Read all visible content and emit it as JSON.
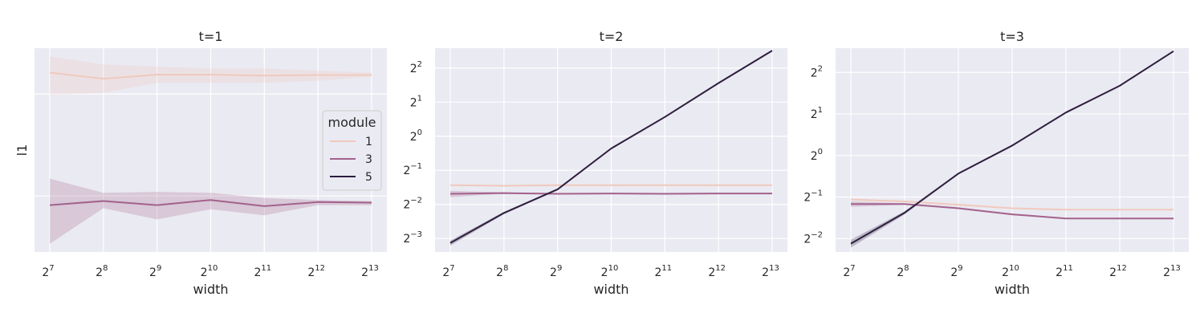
{
  "chart_data": [
    {
      "type": "line",
      "title": "t=1",
      "xlabel": "width",
      "ylabel": "l1",
      "x_scale": "log2",
      "y_scale": "linear",
      "x": [
        128,
        256,
        512,
        1024,
        2048,
        4096,
        8192
      ],
      "x_ticks": [
        {
          "base": "2",
          "exp": "7"
        },
        {
          "base": "2",
          "exp": "8"
        },
        {
          "base": "2",
          "exp": "9"
        },
        {
          "base": "2",
          "exp": "10"
        },
        {
          "base": "2",
          "exp": "11"
        },
        {
          "base": "2",
          "exp": "12"
        },
        {
          "base": "2",
          "exp": "13"
        }
      ],
      "y_ticks": [],
      "ylim": [
        0,
        100
      ],
      "grid": true,
      "legend": {
        "title": "module",
        "placement": "center-right"
      },
      "series": [
        {
          "name": "1",
          "color": "#f0c9bd",
          "values": [
            88,
            85,
            87,
            87,
            86.5,
            86.8,
            86.8
          ],
          "lower": [
            77,
            78,
            83,
            83,
            83,
            84,
            86
          ],
          "upper": [
            96,
            92,
            91,
            90,
            90,
            89,
            88
          ]
        },
        {
          "name": "3",
          "color": "#a3628c",
          "values": [
            23,
            25,
            23,
            25.5,
            22.5,
            24.5,
            24.2
          ],
          "lower": [
            4,
            21.5,
            16,
            21,
            18,
            23,
            23
          ],
          "upper": [
            36,
            29,
            29.5,
            29,
            26.5,
            25.5,
            25
          ]
        }
      ]
    },
    {
      "type": "line",
      "title": "t=2",
      "xlabel": "width",
      "ylabel": "",
      "x_scale": "log2",
      "y_scale": "log2",
      "x": [
        128,
        256,
        512,
        1024,
        2048,
        4096,
        8192
      ],
      "x_ticks": [
        {
          "base": "2",
          "exp": "7"
        },
        {
          "base": "2",
          "exp": "8"
        },
        {
          "base": "2",
          "exp": "9"
        },
        {
          "base": "2",
          "exp": "10"
        },
        {
          "base": "2",
          "exp": "11"
        },
        {
          "base": "2",
          "exp": "12"
        },
        {
          "base": "2",
          "exp": "13"
        }
      ],
      "y_ticks": [
        {
          "value": 0.125,
          "base": "2",
          "exp": "−3"
        },
        {
          "value": 0.25,
          "base": "2",
          "exp": "−2"
        },
        {
          "value": 0.5,
          "base": "2",
          "exp": "−1"
        },
        {
          "value": 1,
          "base": "2",
          "exp": "0"
        },
        {
          "value": 2,
          "base": "2",
          "exp": "1"
        },
        {
          "value": 4,
          "base": "2",
          "exp": "2"
        }
      ],
      "ylim": [
        0.095,
        6.0
      ],
      "grid": true,
      "series": [
        {
          "name": "1",
          "color": "#f0c9bd",
          "values": [
            0.37,
            0.365,
            0.37,
            0.37,
            0.37,
            0.37,
            0.37
          ]
        },
        {
          "name": "3",
          "color": "#a3628c",
          "values": [
            0.31,
            0.315,
            0.31,
            0.312,
            0.31,
            0.312,
            0.312
          ],
          "lower": [
            0.29,
            0.31,
            0.305,
            0.308,
            0.305,
            0.308,
            0.308
          ],
          "upper": [
            0.33,
            0.32,
            0.315,
            0.315,
            0.315,
            0.315,
            0.315
          ]
        },
        {
          "name": "5",
          "color": "#2d1e3e",
          "values": [
            0.114,
            0.21,
            0.34,
            0.78,
            1.48,
            2.95,
            5.7
          ],
          "lower": [
            0.108,
            0.205,
            0.335,
            0.77,
            1.46,
            2.93,
            5.68
          ],
          "upper": [
            0.12,
            0.215,
            0.345,
            0.79,
            1.5,
            2.97,
            5.72
          ]
        }
      ]
    },
    {
      "type": "line",
      "title": "t=3",
      "xlabel": "width",
      "ylabel": "",
      "x_scale": "log2",
      "y_scale": "log2",
      "x": [
        128,
        256,
        512,
        1024,
        2048,
        4096,
        8192
      ],
      "x_ticks": [
        {
          "base": "2",
          "exp": "7"
        },
        {
          "base": "2",
          "exp": "8"
        },
        {
          "base": "2",
          "exp": "9"
        },
        {
          "base": "2",
          "exp": "10"
        },
        {
          "base": "2",
          "exp": "11"
        },
        {
          "base": "2",
          "exp": "12"
        },
        {
          "base": "2",
          "exp": "13"
        }
      ],
      "y_ticks": [
        {
          "value": 0.25,
          "base": "2",
          "exp": "−2"
        },
        {
          "value": 0.5,
          "base": "2",
          "exp": "−1"
        },
        {
          "value": 1,
          "base": "2",
          "exp": "0"
        },
        {
          "value": 2,
          "base": "2",
          "exp": "1"
        },
        {
          "value": 4,
          "base": "2",
          "exp": "2"
        }
      ],
      "ylim": [
        0.2,
        6.0
      ],
      "grid": true,
      "series": [
        {
          "name": "1",
          "color": "#f0c9bd",
          "values": [
            0.48,
            0.465,
            0.44,
            0.415,
            0.405,
            0.405,
            0.405
          ]
        },
        {
          "name": "3",
          "color": "#a3628c",
          "values": [
            0.445,
            0.445,
            0.415,
            0.375,
            0.35,
            0.35,
            0.35
          ],
          "lower": [
            0.425,
            0.44,
            0.41,
            0.37,
            0.347,
            0.347,
            0.347
          ],
          "upper": [
            0.465,
            0.45,
            0.42,
            0.38,
            0.353,
            0.353,
            0.353
          ]
        },
        {
          "name": "5",
          "color": "#2d1e3e",
          "values": [
            0.23,
            0.385,
            0.74,
            1.18,
            2.05,
            3.2,
            5.7
          ],
          "lower": [
            0.215,
            0.375,
            0.73,
            1.16,
            2.02,
            3.18,
            5.68
          ],
          "upper": [
            0.245,
            0.395,
            0.75,
            1.2,
            2.08,
            3.22,
            5.72
          ]
        }
      ]
    }
  ]
}
